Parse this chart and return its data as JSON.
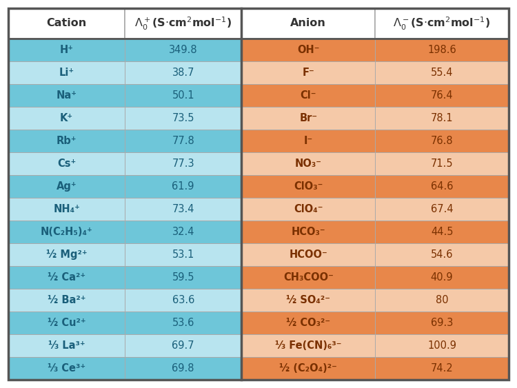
{
  "cation_dark_bg": "#6ec6d9",
  "cation_light_bg": "#b8e4ef",
  "anion_dark_bg": "#e8874a",
  "anion_light_bg": "#f5c9a8",
  "border_color": "#aaaaaa",
  "outer_border_color": "#555555",
  "header_bg": "#ffffff",
  "header_text_color": "#333333",
  "cation_text_color": "#1a5f7a",
  "anion_text_color": "#7a3000",
  "cation_value_color": "#1a5f7a",
  "anion_value_color": "#7a3000",
  "cation_dark_pattern": [
    1,
    0,
    1,
    0,
    1,
    0,
    1,
    0,
    1,
    0,
    1,
    0,
    1,
    0,
    1
  ],
  "anion_dark_pattern": [
    1,
    0,
    1,
    0,
    1,
    0,
    1,
    0,
    1,
    0,
    1,
    0,
    1,
    0,
    1
  ],
  "cations_latex": [
    "H$^+$",
    "Li$^+$",
    "Na$^+$",
    "K$^+$",
    "Rb$^+$",
    "Cs$^+$",
    "Ag$^+$",
    "NH$_4^+$",
    "N(C$_2$H$_5$)$_4^+$",
    "\\u00bd Mg$^{2+}$",
    "\\u00bd Ca$^{2+}$",
    "\\u00bd Ba$^{2+}$",
    "\\u00bd Cu$^{2+}$",
    "\\u2153 La$^{3+}$",
    "\\u2153 Ce$^{3+}$"
  ],
  "cation_values": [
    "349.8",
    "38.7",
    "50.1",
    "73.5",
    "77.8",
    "77.3",
    "61.9",
    "73.4",
    "32.4",
    "53.1",
    "59.5",
    "63.6",
    "53.6",
    "69.7",
    "69.8"
  ],
  "anion_values": [
    "198.6",
    "55.4",
    "76.4",
    "78.1",
    "76.8",
    "71.5",
    "64.6",
    "67.4",
    "44.5",
    "54.6",
    "40.9",
    "80",
    "69.3",
    "100.9",
    "74.2"
  ],
  "header_fontsize": 11.5,
  "cell_fontsize": 10.5,
  "fig_width": 7.5,
  "fig_height": 5.63,
  "fig_dpi": 100
}
